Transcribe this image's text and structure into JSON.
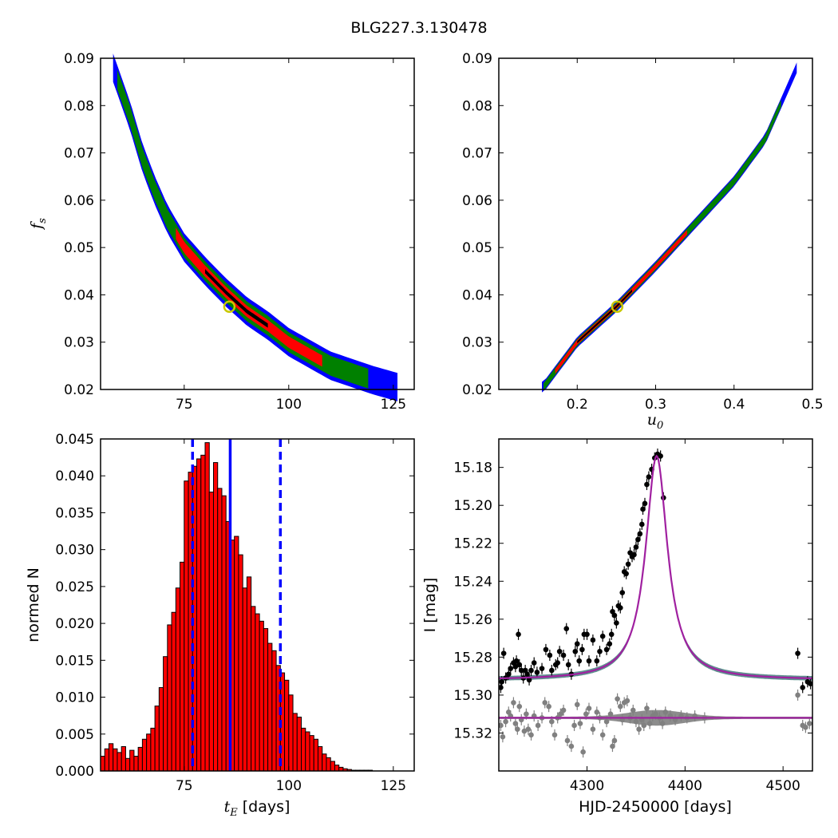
{
  "title": "BLG227.3.130478",
  "chart_data": [
    {
      "type": "heatmap",
      "ylabel_main": "f",
      "ylabel_sub": "s",
      "xlim": [
        55,
        130
      ],
      "ylim": [
        0.02,
        0.09
      ],
      "xticks": [
        "75",
        "100",
        "125"
      ],
      "yticks": [
        "0.02",
        "0.03",
        "0.04",
        "0.05",
        "0.06",
        "0.07",
        "0.08",
        "0.09"
      ],
      "band": [
        [
          58,
          0.088
        ],
        [
          62,
          0.078
        ],
        [
          65,
          0.069
        ],
        [
          68,
          0.062
        ],
        [
          71,
          0.056
        ],
        [
          75,
          0.05
        ],
        [
          80,
          0.045
        ],
        [
          85,
          0.0405
        ],
        [
          90,
          0.0365
        ],
        [
          95,
          0.0335
        ],
        [
          100,
          0.03
        ],
        [
          105,
          0.0275
        ],
        [
          110,
          0.025
        ],
        [
          115,
          0.0235
        ],
        [
          120,
          0.022
        ],
        [
          126,
          0.0205
        ]
      ],
      "xrange": [
        58,
        126
      ],
      "regions": [
        {
          "name": "blue",
          "color": "#0000ff",
          "width": 0.006,
          "xmin": 58,
          "xmax": 126
        },
        {
          "name": "green",
          "color": "#008000",
          "width": 0.0042,
          "xmin": 59,
          "xmax": 119
        },
        {
          "name": "red",
          "color": "#ff0000",
          "width": 0.0024,
          "xmin": 73,
          "xmax": 108
        },
        {
          "name": "black",
          "color": "#000000",
          "width": 0.0009,
          "xmin": 80,
          "xmax": 95
        }
      ],
      "best": {
        "x": 85.8,
        "y": 0.0375
      }
    },
    {
      "type": "heatmap",
      "xlabel_main": "u",
      "xlabel_sub": "0",
      "xlim": [
        0.1,
        0.5
      ],
      "ylim": [
        0.02,
        0.09
      ],
      "xticks": [
        "0.2",
        "0.3",
        "0.4",
        "0.5"
      ],
      "yticks": [
        "0.02",
        "0.03",
        "0.04",
        "0.05",
        "0.06",
        "0.07",
        "0.08",
        "0.09"
      ],
      "band": [
        [
          0.157,
          0.0205
        ],
        [
          0.2,
          0.03
        ],
        [
          0.25,
          0.0375
        ],
        [
          0.3,
          0.046
        ],
        [
          0.35,
          0.055
        ],
        [
          0.4,
          0.064
        ],
        [
          0.44,
          0.073
        ],
        [
          0.48,
          0.088
        ]
      ],
      "xrange": [
        0.155,
        0.48
      ],
      "regions": [
        {
          "name": "blue",
          "color": "#0000ff",
          "width": 0.0022,
          "xmin": 0.155,
          "xmax": 0.48
        },
        {
          "name": "green",
          "color": "#008000",
          "width": 0.0016,
          "xmin": 0.157,
          "xmax": 0.46
        },
        {
          "name": "red",
          "color": "#ff0000",
          "width": 0.001,
          "xmin": 0.172,
          "xmax": 0.34
        },
        {
          "name": "black",
          "color": "#000000",
          "width": 0.0005,
          "xmin": 0.2,
          "xmax": 0.27
        }
      ],
      "best": {
        "x": 0.251,
        "y": 0.0375
      }
    },
    {
      "type": "bar",
      "xlabel_main": "t",
      "xlabel_sub": "E",
      "xlabel_unit": " [days]",
      "ylabel": "normed N",
      "xlim": [
        55,
        130
      ],
      "ylim": [
        0,
        0.045
      ],
      "xticks": [
        "75",
        "100",
        "125"
      ],
      "yticks": [
        "0.000",
        "0.005",
        "0.010",
        "0.015",
        "0.020",
        "0.025",
        "0.030",
        "0.035",
        "0.040",
        "0.045"
      ],
      "bin_start": 55,
      "bin_width": 1.0,
      "values": [
        0.002,
        0.003,
        0.0037,
        0.003,
        0.0025,
        0.0033,
        0.0017,
        0.0028,
        0.002,
        0.0032,
        0.0043,
        0.005,
        0.0058,
        0.0088,
        0.0113,
        0.0155,
        0.0198,
        0.0215,
        0.0248,
        0.0283,
        0.0393,
        0.0405,
        0.0413,
        0.0423,
        0.0428,
        0.0445,
        0.0378,
        0.0418,
        0.0383,
        0.0373,
        0.0338,
        0.0313,
        0.0318,
        0.0293,
        0.0248,
        0.0263,
        0.0223,
        0.0213,
        0.0203,
        0.0193,
        0.0173,
        0.0163,
        0.0143,
        0.0133,
        0.0123,
        0.0103,
        0.0078,
        0.0073,
        0.0058,
        0.0053,
        0.0048,
        0.0043,
        0.0033,
        0.0023,
        0.0018,
        0.0013,
        0.0008,
        0.0005,
        0.0003,
        0.0002,
        0.0001,
        0.0001,
        0.0001,
        0.0001,
        0.0001,
        0.0
      ],
      "bar_color": "#ff0000",
      "vlines": [
        {
          "x": 77.0,
          "style": "dashed",
          "color": "#0000ff"
        },
        {
          "x": 86.0,
          "style": "solid",
          "color": "#0000ff"
        },
        {
          "x": 98.0,
          "style": "dashed",
          "color": "#0000ff"
        }
      ]
    },
    {
      "type": "line",
      "xlabel": "HJD-2450000 [days]",
      "ylabel": "I [mag]",
      "xlim": [
        4210,
        4530
      ],
      "ylim": [
        15.34,
        15.165
      ],
      "xticks": [
        "4300",
        "4400",
        "4500"
      ],
      "yticks": [
        "15.18",
        "15.20",
        "15.22",
        "15.24",
        "15.26",
        "15.28",
        "15.30",
        "15.32"
      ],
      "model": {
        "t0": 4371,
        "baseline": 15.292,
        "peak": 15.174,
        "hw_left": 13.5,
        "hw_right": 13.5,
        "wing": 60
      },
      "residual_line": 15.312,
      "model_color": "#a020a0",
      "data_color": "#000000",
      "resid_color": "#808080",
      "points": [
        [
          4212,
          15.296
        ],
        [
          4213,
          15.293
        ],
        [
          4215,
          15.278
        ],
        [
          4217,
          15.291
        ],
        [
          4220,
          15.289
        ],
        [
          4222,
          15.286
        ],
        [
          4225,
          15.283
        ],
        [
          4227,
          15.285
        ],
        [
          4228,
          15.282
        ],
        [
          4230,
          15.268
        ],
        [
          4231,
          15.284
        ],
        [
          4233,
          15.287
        ],
        [
          4235,
          15.291
        ],
        [
          4237,
          15.287
        ],
        [
          4239,
          15.289
        ],
        [
          4241,
          15.292
        ],
        [
          4243,
          15.287
        ],
        [
          4246,
          15.283
        ],
        [
          4249,
          15.288
        ],
        [
          4254,
          15.286
        ],
        [
          4258,
          15.276
        ],
        [
          4262,
          15.279
        ],
        [
          4264,
          15.287
        ],
        [
          4268,
          15.284
        ],
        [
          4270,
          15.283
        ],
        [
          4272,
          15.277
        ],
        [
          4276,
          15.279
        ],
        [
          4279,
          15.265
        ],
        [
          4281,
          15.284
        ],
        [
          4284,
          15.289
        ],
        [
          4288,
          15.277
        ],
        [
          4290,
          15.273
        ],
        [
          4292,
          15.282
        ],
        [
          4295,
          15.276
        ],
        [
          4297,
          15.268
        ],
        [
          4300,
          15.268
        ],
        [
          4302,
          15.282
        ],
        [
          4306,
          15.271
        ],
        [
          4310,
          15.282
        ],
        [
          4313,
          15.277
        ],
        [
          4316,
          15.269
        ],
        [
          4320,
          15.276
        ],
        [
          4323,
          15.273
        ],
        [
          4325,
          15.268
        ],
        [
          4326,
          15.256
        ],
        [
          4328,
          15.258
        ],
        [
          4330,
          15.262
        ],
        [
          4332,
          15.253
        ],
        [
          4334,
          15.254
        ],
        [
          4336,
          15.246
        ],
        [
          4338,
          15.235
        ],
        [
          4340,
          15.236
        ],
        [
          4342,
          15.231
        ],
        [
          4344,
          15.225
        ],
        [
          4346,
          15.227
        ],
        [
          4348,
          15.226
        ],
        [
          4350,
          15.222
        ],
        [
          4352,
          15.218
        ],
        [
          4354,
          15.215
        ],
        [
          4356,
          15.21
        ],
        [
          4357,
          15.202
        ],
        [
          4359,
          15.199
        ],
        [
          4361,
          15.189
        ],
        [
          4363,
          15.185
        ],
        [
          4366,
          15.181
        ],
        [
          4369,
          15.175
        ],
        [
          4372,
          15.173
        ],
        [
          4375,
          15.174
        ],
        [
          4378,
          15.196
        ],
        [
          4515,
          15.278
        ],
        [
          4520,
          15.296
        ],
        [
          4525,
          15.293
        ],
        [
          4528,
          15.294
        ]
      ],
      "resid_points": [
        [
          4212,
          15.316
        ],
        [
          4214,
          15.322
        ],
        [
          4217,
          15.314
        ],
        [
          4220,
          15.309
        ],
        [
          4222,
          15.311
        ],
        [
          4225,
          15.304
        ],
        [
          4227,
          15.315
        ],
        [
          4229,
          15.318
        ],
        [
          4231,
          15.306
        ],
        [
          4233,
          15.313
        ],
        [
          4236,
          15.319
        ],
        [
          4238,
          15.31
        ],
        [
          4240,
          15.318
        ],
        [
          4243,
          15.321
        ],
        [
          4246,
          15.311
        ],
        [
          4250,
          15.316
        ],
        [
          4254,
          15.312
        ],
        [
          4257,
          15.304
        ],
        [
          4261,
          15.306
        ],
        [
          4264,
          15.314
        ],
        [
          4267,
          15.321
        ],
        [
          4270,
          15.312
        ],
        [
          4273,
          15.31
        ],
        [
          4276,
          15.308
        ],
        [
          4280,
          15.324
        ],
        [
          4284,
          15.327
        ],
        [
          4287,
          15.316
        ],
        [
          4290,
          15.305
        ],
        [
          4293,
          15.315
        ],
        [
          4296,
          15.33
        ],
        [
          4299,
          15.31
        ],
        [
          4302,
          15.307
        ],
        [
          4306,
          15.318
        ],
        [
          4310,
          15.309
        ],
        [
          4313,
          15.312
        ],
        [
          4316,
          15.321
        ],
        [
          4320,
          15.314
        ],
        [
          4324,
          15.31
        ],
        [
          4326,
          15.327
        ],
        [
          4328,
          15.324
        ],
        [
          4331,
          15.302
        ],
        [
          4334,
          15.306
        ],
        [
          4336,
          15.313
        ],
        [
          4338,
          15.304
        ],
        [
          4341,
          15.303
        ],
        [
          4344,
          15.312
        ],
        [
          4347,
          15.308
        ],
        [
          4350,
          15.314
        ],
        [
          4353,
          15.318
        ],
        [
          4356,
          15.313
        ],
        [
          4358,
          15.316
        ],
        [
          4361,
          15.307
        ],
        [
          4364,
          15.315
        ],
        [
          4367,
          15.311
        ],
        [
          4370,
          15.31
        ],
        [
          4374,
          15.312
        ],
        [
          4377,
          15.315
        ],
        [
          4380,
          15.309
        ],
        [
          4385,
          15.311
        ],
        [
          4390,
          15.313
        ],
        [
          4396,
          15.311
        ],
        [
          4402,
          15.312
        ],
        [
          4410,
          15.311
        ],
        [
          4420,
          15.312
        ],
        [
          4515,
          15.3
        ],
        [
          4520,
          15.316
        ],
        [
          4523,
          15.317
        ],
        [
          4527,
          15.315
        ]
      ]
    }
  ]
}
